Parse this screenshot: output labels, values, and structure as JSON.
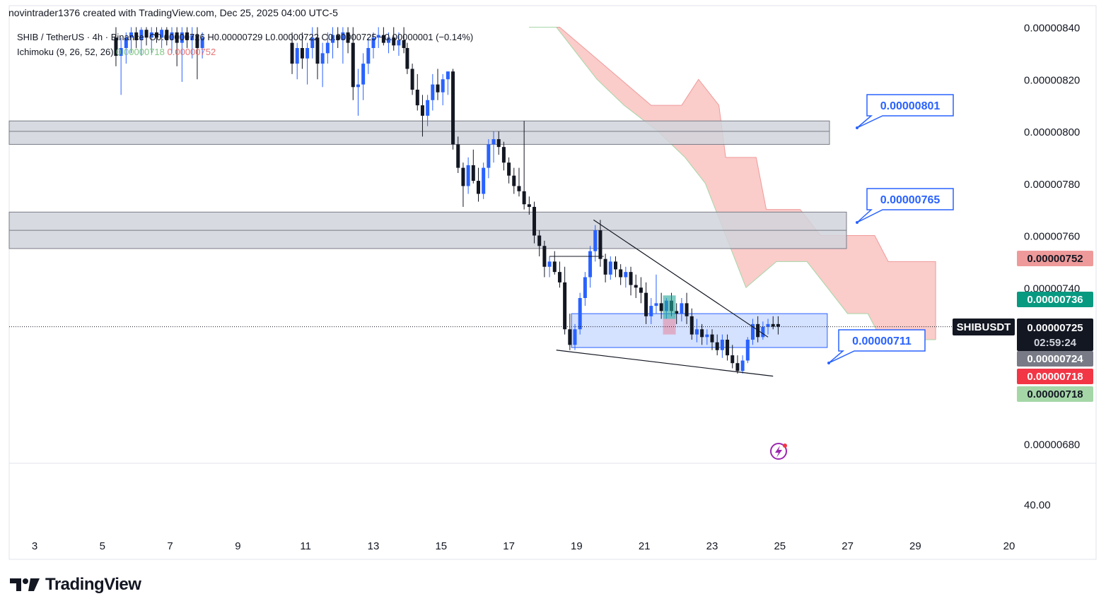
{
  "header": {
    "created_by": "novintrader1376 created with TradingView.com, Dec 25, 2025 04:00 UTC-5"
  },
  "legend": {
    "symbol": "SHIB / TetherUS · 4h · Binance",
    "ohlc": "O0.00000726  H0.00000729  L0.00000722  C0.00000725  −0.00000001 (−0.14%)",
    "ichimoku_label": "Ichimoku (9, 26, 52, 26)",
    "ichimoku_v1": "0.00000718",
    "ichimoku_v2": "0.00000752"
  },
  "chart_data": {
    "type": "candlestick",
    "symbol": "SHIBUSDT",
    "timeframe": "4h",
    "ylim": [
      6.65e-06,
      8.45e-06
    ],
    "price_ticks": [
      "0.00000840",
      "0.00000820",
      "0.00000800",
      "0.00000780",
      "0.00000760",
      "0.00000740",
      "0.00000680"
    ],
    "price_tick_values": [
      8.4e-06,
      8.2e-06,
      8e-06,
      7.8e-06,
      7.6e-06,
      7.4e-06,
      6.8e-06
    ],
    "lower_pane_tick": "40.00",
    "date_ticks": [
      "3",
      "5",
      "7",
      "9",
      "11",
      "13",
      "15",
      "17",
      "19",
      "21",
      "23",
      "25",
      "27",
      "29",
      "20"
    ],
    "date_tick_days": [
      3,
      5,
      7,
      9,
      11,
      13,
      15,
      17,
      19,
      21,
      23,
      25,
      27,
      29,
      38
    ],
    "candles": [
      [
        5.4,
        8.36e-06,
        8.4e-06,
        8.25e-06,
        8.29e-06
      ],
      [
        5.55,
        8.29e-06,
        8.36e-06,
        8.14e-06,
        8.32e-06
      ],
      [
        5.7,
        8.32e-06,
        8.38e-06,
        8.26e-06,
        8.36e-06
      ],
      [
        5.85,
        8.36e-06,
        8.4e-06,
        8.3e-06,
        8.38e-06
      ],
      [
        6.0,
        8.38e-06,
        8.4e-06,
        8.32e-06,
        8.35e-06
      ],
      [
        6.15,
        8.35e-06,
        8.4e-06,
        8.29e-06,
        8.39e-06
      ],
      [
        6.3,
        8.39e-06,
        8.4e-06,
        8.33e-06,
        8.36e-06
      ],
      [
        6.45,
        8.36e-06,
        8.4e-06,
        8.3e-06,
        8.38e-06
      ],
      [
        6.6,
        8.38e-06,
        8.4e-06,
        8.34e-06,
        8.36e-06
      ],
      [
        6.75,
        8.36e-06,
        8.4e-06,
        8.32e-06,
        8.39e-06
      ],
      [
        6.9,
        8.39e-06,
        8.4e-06,
        8.33e-06,
        8.35e-06
      ],
      [
        7.05,
        8.35e-06,
        8.4e-06,
        8.3e-06,
        8.38e-06
      ],
      [
        7.2,
        8.38e-06,
        8.4e-06,
        8.25e-06,
        8.34e-06
      ],
      [
        7.35,
        8.34e-06,
        8.4e-06,
        8.19e-06,
        8.38e-06
      ],
      [
        7.5,
        8.38e-06,
        8.4e-06,
        8.32e-06,
        8.35e-06
      ],
      [
        7.65,
        8.35e-06,
        8.4e-06,
        8.28e-06,
        8.37e-06
      ],
      [
        7.8,
        8.37e-06,
        8.4e-06,
        8.2e-06,
        8.32e-06
      ],
      [
        7.95,
        8.32e-06,
        8.38e-06,
        8.28e-06,
        8.36e-06
      ],
      [
        10.6,
        8.34e-06,
        8.38e-06,
        8.22e-06,
        8.26e-06
      ],
      [
        10.75,
        8.26e-06,
        8.34e-06,
        8.2e-06,
        8.32e-06
      ],
      [
        10.9,
        8.32e-06,
        8.38e-06,
        8.24e-06,
        8.28e-06
      ],
      [
        11.05,
        8.28e-06,
        8.34e-06,
        8.18e-06,
        8.32e-06
      ],
      [
        11.2,
        8.32e-06,
        8.4e-06,
        8.28e-06,
        8.36e-06
      ],
      [
        11.35,
        8.36e-06,
        8.4e-06,
        8.2e-06,
        8.26e-06
      ],
      [
        11.5,
        8.26e-06,
        8.34e-06,
        8.17e-06,
        8.3e-06
      ],
      [
        11.65,
        8.3e-06,
        8.38e-06,
        8.26e-06,
        8.34e-06
      ],
      [
        11.8,
        8.34e-06,
        8.4e-06,
        8.28e-06,
        8.37e-06
      ],
      [
        11.95,
        8.37e-06,
        8.4e-06,
        8.32e-06,
        8.35e-06
      ],
      [
        12.1,
        8.35e-06,
        8.4e-06,
        8.26e-06,
        8.38e-06
      ],
      [
        12.25,
        8.38e-06,
        8.4e-06,
        8.3e-06,
        8.34e-06
      ],
      [
        12.4,
        8.34e-06,
        8.4e-06,
        8.12e-06,
        8.17e-06
      ],
      [
        12.55,
        8.17e-06,
        8.24e-06,
        8.06e-06,
        8.18e-06
      ],
      [
        12.7,
        8.18e-06,
        8.3e-06,
        8.12e-06,
        8.26e-06
      ],
      [
        12.85,
        8.26e-06,
        8.36e-06,
        8.22e-06,
        8.32e-06
      ],
      [
        13.0,
        8.32e-06,
        8.38e-06,
        8.28e-06,
        8.36e-06
      ],
      [
        13.15,
        8.36e-06,
        8.4e-06,
        8.32e-06,
        8.37e-06
      ],
      [
        13.3,
        8.37e-06,
        8.4e-06,
        8.33e-06,
        8.34e-06
      ],
      [
        13.45,
        8.34e-06,
        8.38e-06,
        8.3e-06,
        8.36e-06
      ],
      [
        13.6,
        8.36e-06,
        8.4e-06,
        8.31e-06,
        8.33e-06
      ],
      [
        13.75,
        8.33e-06,
        8.38e-06,
        8.29e-06,
        8.35e-06
      ],
      [
        13.9,
        8.35e-06,
        8.4e-06,
        8.3e-06,
        8.32e-06
      ],
      [
        14.0,
        8.32e-06,
        8.34e-06,
        8.22e-06,
        8.24e-06
      ],
      [
        14.15,
        8.24e-06,
        8.26e-06,
        8.14e-06,
        8.16e-06
      ],
      [
        14.3,
        8.16e-06,
        8.22e-06,
        8.08e-06,
        8.1e-06
      ],
      [
        14.45,
        8.1e-06,
        8.14e-06,
        7.98e-06,
        8.06e-06
      ],
      [
        14.6,
        8.06e-06,
        8.14e-06,
        8.02e-06,
        8.12e-06
      ],
      [
        14.75,
        8.12e-06,
        8.22e-06,
        8.08e-06,
        8.18e-06
      ],
      [
        14.9,
        8.18e-06,
        8.24e-06,
        8.12e-06,
        8.15e-06
      ],
      [
        15.05,
        8.15e-06,
        8.22e-06,
        8.1e-06,
        8.2e-06
      ],
      [
        15.2,
        8.2e-06,
        8.23e-06,
        8.14e-06,
        8.23e-06
      ],
      [
        15.35,
        8.23e-06,
        8.24e-06,
        7.93e-06,
        7.95e-06
      ],
      [
        15.5,
        7.95e-06,
        7.98e-06,
        7.84e-06,
        7.86e-06
      ],
      [
        15.65,
        7.86e-06,
        7.88e-06,
        7.71e-06,
        7.79e-06
      ],
      [
        15.8,
        7.79e-06,
        7.9e-06,
        7.76e-06,
        7.87e-06
      ],
      [
        15.95,
        7.87e-06,
        7.93e-06,
        7.8e-06,
        7.81e-06
      ],
      [
        16.1,
        7.81e-06,
        7.86e-06,
        7.73e-06,
        7.76e-06
      ],
      [
        16.25,
        7.76e-06,
        7.88e-06,
        7.74e-06,
        7.86e-06
      ],
      [
        16.4,
        7.86e-06,
        7.97e-06,
        7.82e-06,
        7.95e-06
      ],
      [
        16.55,
        7.95e-06,
        8e-06,
        7.88e-06,
        7.97e-06
      ],
      [
        16.7,
        7.97e-06,
        8e-06,
        7.91e-06,
        7.94e-06
      ],
      [
        16.85,
        7.94e-06,
        7.96e-06,
        7.85e-06,
        7.88e-06
      ],
      [
        17.0,
        7.88e-06,
        7.9e-06,
        7.8e-06,
        7.83e-06
      ],
      [
        17.15,
        7.83e-06,
        7.86e-06,
        7.76e-06,
        7.79e-06
      ],
      [
        17.3,
        7.79e-06,
        7.86e-06,
        7.75e-06,
        7.77e-06
      ],
      [
        17.45,
        7.77e-06,
        8.04e-06,
        7.7e-06,
        7.72e-06
      ],
      [
        17.6,
        7.72e-06,
        7.75e-06,
        7.68e-06,
        7.71e-06
      ],
      [
        17.75,
        7.71e-06,
        7.73e-06,
        7.57e-06,
        7.6e-06
      ],
      [
        17.9,
        7.6e-06,
        7.62e-06,
        7.52e-06,
        7.56e-06
      ],
      [
        18.05,
        7.56e-06,
        7.58e-06,
        7.44e-06,
        7.48e-06
      ],
      [
        18.2,
        7.48e-06,
        7.52e-06,
        7.44e-06,
        7.5e-06
      ],
      [
        18.35,
        7.5e-06,
        7.54e-06,
        7.45e-06,
        7.46e-06
      ],
      [
        18.5,
        7.46e-06,
        7.5e-06,
        7.4e-06,
        7.42e-06
      ],
      [
        18.65,
        7.42e-06,
        7.48e-06,
        7.22e-06,
        7.24e-06
      ],
      [
        18.8,
        7.24e-06,
        7.3e-06,
        7.16e-06,
        7.18e-06
      ],
      [
        18.95,
        7.18e-06,
        7.26e-06,
        7.16e-06,
        7.24e-06
      ],
      [
        19.1,
        7.24e-06,
        7.38e-06,
        7.22e-06,
        7.36e-06
      ],
      [
        19.25,
        7.36e-06,
        7.46e-06,
        7.33e-06,
        7.44e-06
      ],
      [
        19.4,
        7.44e-06,
        7.56e-06,
        7.4e-06,
        7.54e-06
      ],
      [
        19.55,
        7.54e-06,
        7.64e-06,
        7.5e-06,
        7.62e-06
      ],
      [
        19.7,
        7.62e-06,
        7.66e-06,
        7.48e-06,
        7.51e-06
      ],
      [
        19.85,
        7.51e-06,
        7.53e-06,
        7.42e-06,
        7.45e-06
      ],
      [
        20.0,
        7.45e-06,
        7.52e-06,
        7.43e-06,
        7.5e-06
      ],
      [
        20.15,
        7.5e-06,
        7.52e-06,
        7.44e-06,
        7.47e-06
      ],
      [
        20.3,
        7.47e-06,
        7.49e-06,
        7.41e-06,
        7.44e-06
      ],
      [
        20.45,
        7.44e-06,
        7.48e-06,
        7.4e-06,
        7.46e-06
      ],
      [
        20.6,
        7.46e-06,
        7.48e-06,
        7.37e-06,
        7.41e-06
      ],
      [
        20.75,
        7.41e-06,
        7.45e-06,
        7.36e-06,
        7.4e-06
      ],
      [
        20.9,
        7.4e-06,
        7.44e-06,
        7.34e-06,
        7.38e-06
      ],
      [
        21.05,
        7.38e-06,
        7.42e-06,
        7.26e-06,
        7.29e-06
      ],
      [
        21.2,
        7.29e-06,
        7.36e-06,
        7.26e-06,
        7.33e-06
      ],
      [
        21.35,
        7.33e-06,
        7.45e-06,
        7.3e-06,
        7.34e-06
      ],
      [
        21.5,
        7.34e-06,
        7.38e-06,
        7.28e-06,
        7.31e-06
      ],
      [
        21.65,
        7.31e-06,
        7.36e-06,
        7.28e-06,
        7.35e-06
      ],
      [
        21.8,
        7.35e-06,
        7.38e-06,
        7.29e-06,
        7.31e-06
      ],
      [
        21.95,
        7.31e-06,
        7.34e-06,
        7.26e-06,
        7.3e-06
      ],
      [
        22.1,
        7.3e-06,
        7.36e-06,
        7.27e-06,
        7.34e-06
      ],
      [
        22.25,
        7.34e-06,
        7.38e-06,
        7.26e-06,
        7.29e-06
      ],
      [
        22.4,
        7.29e-06,
        7.32e-06,
        7.2e-06,
        7.22e-06
      ],
      [
        22.55,
        7.22e-06,
        7.28e-06,
        7.19e-06,
        7.24e-06
      ],
      [
        22.7,
        7.24e-06,
        7.26e-06,
        7.18e-06,
        7.21e-06
      ],
      [
        22.85,
        7.21e-06,
        7.24e-06,
        7.18e-06,
        7.22e-06
      ],
      [
        23.0,
        7.22e-06,
        7.24e-06,
        7.16e-06,
        7.19e-06
      ],
      [
        23.15,
        7.19e-06,
        7.22e-06,
        7.14e-06,
        7.16e-06
      ],
      [
        23.3,
        7.16e-06,
        7.22e-06,
        7.13e-06,
        7.2e-06
      ],
      [
        23.45,
        7.2e-06,
        7.22e-06,
        7.12e-06,
        7.14e-06
      ],
      [
        23.6,
        7.14e-06,
        7.18e-06,
        7.09e-06,
        7.11e-06
      ],
      [
        23.75,
        7.11e-06,
        7.14e-06,
        7.07e-06,
        7.08e-06
      ],
      [
        23.9,
        7.08e-06,
        7.14e-06,
        7.07e-06,
        7.12e-06
      ],
      [
        24.05,
        7.12e-06,
        7.21e-06,
        7.11e-06,
        7.2e-06
      ],
      [
        24.2,
        7.2e-06,
        7.28e-06,
        7.18e-06,
        7.26e-06
      ],
      [
        24.35,
        7.26e-06,
        7.29e-06,
        7.19e-06,
        7.21e-06
      ],
      [
        24.5,
        7.21e-06,
        7.27e-06,
        7.2e-06,
        7.25e-06
      ],
      [
        24.65,
        7.25e-06,
        7.28e-06,
        7.22e-06,
        7.26e-06
      ],
      [
        24.8,
        7.26e-06,
        7.29e-06,
        7.24e-06,
        7.25e-06
      ],
      [
        24.95,
        7.26e-06,
        7.29e-06,
        7.22e-06,
        7.25e-06
      ]
    ],
    "ichimoku_cloud": {
      "upper": [
        [
          17.6,
          8.4e-06
        ],
        [
          18.5,
          8.4e-06
        ],
        [
          19.4,
          8.3e-06
        ],
        [
          20.3,
          8.2e-06
        ],
        [
          21.2,
          8.1e-06
        ],
        [
          22.1,
          8.1e-06
        ],
        [
          22.6,
          8.2e-06
        ],
        [
          23.2,
          8.1e-06
        ],
        [
          23.4,
          7.9e-06
        ],
        [
          24.3,
          7.9e-06
        ],
        [
          24.6,
          7.7e-06
        ],
        [
          25.6,
          7.7e-06
        ],
        [
          26.2,
          7.6e-06
        ],
        [
          26.8,
          7.6e-06
        ],
        [
          27.8,
          7.6e-06
        ],
        [
          28.2,
          7.5e-06
        ],
        [
          29.2,
          7.5e-06
        ],
        [
          29.6,
          7.5e-06
        ],
        [
          29.6,
          7.2e-06
        ]
      ],
      "lower": [
        [
          29.6,
          7.2e-06
        ],
        [
          28.8,
          7.2e-06
        ],
        [
          28.0,
          7.2e-06
        ],
        [
          27.6,
          7.3e-06
        ],
        [
          27.0,
          7.3e-06
        ],
        [
          26.4,
          7.4e-06
        ],
        [
          25.8,
          7.5e-06
        ],
        [
          24.9,
          7.5e-06
        ],
        [
          24.0,
          7.4e-06
        ],
        [
          23.4,
          7.6e-06
        ],
        [
          22.8,
          7.8e-06
        ],
        [
          22.2,
          7.9e-06
        ],
        [
          21.4,
          8e-06
        ],
        [
          20.4,
          8.1e-06
        ],
        [
          19.6,
          8.2e-06
        ],
        [
          19.0,
          8.3e-06
        ],
        [
          18.4,
          8.4e-06
        ],
        [
          17.6,
          8.4e-06
        ]
      ]
    },
    "resistance_zones": [
      {
        "from": 7.95e-06,
        "mid": 8e-06,
        "to": 8.04e-06
      },
      {
        "from": 7.55e-06,
        "mid": 7.62e-06,
        "to": 7.69e-06
      }
    ],
    "demand_zone": {
      "from_day": 18.85,
      "to_day": 26.4,
      "low": 7.17e-06,
      "high": 7.3e-06
    },
    "callouts": [
      "0.00000801",
      "0.00000765",
      "0.00000711"
    ],
    "tags": {
      "ichimoku_red": "0.00000752",
      "ichimoku_green": "0.00000736",
      "last_symbol": "SHIBUSDT",
      "last_price": "0.00000725",
      "countdown": "02:59:24",
      "tag_724": "0.00000724",
      "tag_718_red": "0.00000718",
      "tag_718_green": "0.00000718"
    },
    "colors": {
      "up": "#2962ff",
      "down": "#131722",
      "cloud": "#f8bbb8",
      "zone": "#d1d4dc",
      "demand": "#cddcff"
    }
  },
  "footer": {
    "brand": "TradingView"
  }
}
